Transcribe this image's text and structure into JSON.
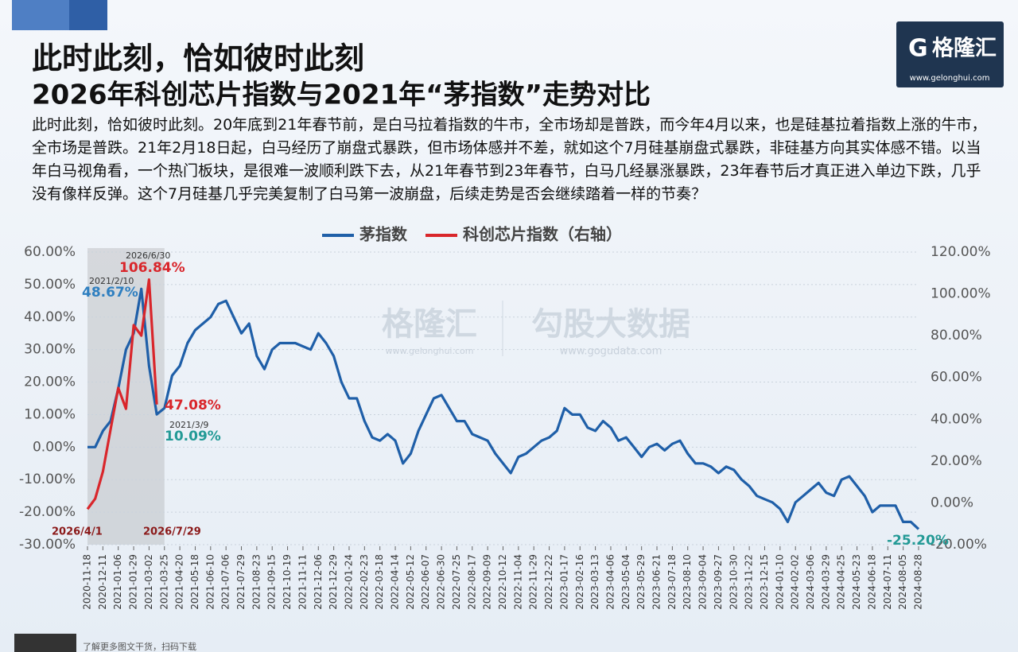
{
  "chart_data": {
    "type": "line",
    "title": "此时此刻，恰如彼时此刻",
    "subtitle": "2026年科创芯片指数与2021年“茅指数”走势对比",
    "description": "此时此刻，恰如彼时此刻。20年底到21年春节前，是白马拉着指数的牛市，全市场却是普跌，而今年4月以来，也是硅基拉着指数上涨的牛市，全市场是普跌。21年2月18日起，白马经历了崩盘式暴跌，但市场体感并不差，就如这个7月硅基崩盘式暴跌，非硅基方向其实体感不错。以当年白马视角看，一个热门板块，是很难一波顺利跌下去，从21年春节到23年春节，白马几经暴涨暴跌，23年春节后才真正进入单边下跌，几乎没有像样反弹。这个7月硅基几乎完美复制了白马第一波崩盘，后续走势是否会继续踏着一样的节奏？",
    "logo": {
      "name": "格隆汇",
      "url": "www.gelonghui.com"
    },
    "watermark": [
      "格隆汇",
      "www.gelonghui.com",
      "勾股大数据",
      "www.gogudata.com"
    ],
    "footer": "了解更多图文干货，扫码下载",
    "categories": [
      "2020-11-18",
      null,
      "2020-12-11",
      null,
      "2021-01-06",
      null,
      "2021-01-29",
      null,
      "2021-03-02",
      null,
      "2021-03-25",
      null,
      "2021-04-20",
      null,
      "2021-05-18",
      null,
      "2021-06-10",
      null,
      "2021-07-06",
      null,
      "2021-07-29",
      null,
      "2021-08-23",
      null,
      "2021-09-15",
      null,
      "2021-10-19",
      null,
      "2021-11-11",
      null,
      "2021-12-06",
      null,
      "2021-12-29",
      null,
      "2022-01-24",
      null,
      "2022-02-23",
      null,
      "2022-03-18",
      null,
      "2022-04-14",
      null,
      "2022-05-12",
      null,
      "2022-06-07",
      null,
      "2022-06-30",
      null,
      "2022-07-25",
      null,
      "2022-08-17",
      null,
      "2022-09-09",
      null,
      "2022-10-12",
      null,
      "2022-11-04",
      null,
      "2022-11-29",
      null,
      "2022-12-22",
      null,
      "2023-01-17",
      null,
      "2023-02-16",
      null,
      "2023-03-13",
      null,
      "2023-04-06",
      null,
      "2023-05-04",
      null,
      "2023-05-29",
      null,
      "2023-06-21",
      null,
      "2023-07-18",
      null,
      "2023-08-10",
      null,
      "2023-09-04",
      null,
      "2023-09-27",
      null,
      "2023-10-30",
      null,
      "2023-11-22",
      null,
      "2023-12-15",
      null,
      "2024-01-10",
      null,
      "2024-02-02",
      null,
      "2024-03-06",
      null,
      "2024-03-29",
      null,
      "2024-04-25",
      null,
      "2024-05-23",
      null,
      "2024-06-18",
      null,
      "2024-07-11",
      null,
      "2024-08-05",
      null,
      "2024-08-28"
    ],
    "series": [
      {
        "name": "茅指数",
        "color": "#1f5fa8",
        "axis": "y",
        "values": [
          0,
          0,
          5,
          8,
          18,
          30,
          35,
          48.67,
          25,
          10.09,
          12,
          22,
          25,
          32,
          36,
          38,
          40,
          44,
          45,
          40,
          35,
          38,
          28,
          24,
          30,
          32,
          32,
          32,
          31,
          30,
          35,
          32,
          28,
          20,
          15,
          15,
          8,
          3,
          2,
          4,
          2,
          -5,
          -2,
          5,
          10,
          15,
          16,
          12,
          8,
          8,
          4,
          3,
          2,
          -2,
          -5,
          -8,
          -3,
          -2,
          0,
          2,
          3,
          5,
          12,
          10,
          10,
          6,
          5,
          8,
          6,
          2,
          3,
          0,
          -3,
          0,
          1,
          -1,
          1,
          2,
          -2,
          -5,
          -5,
          -6,
          -8,
          -6,
          -7,
          -10,
          -12,
          -15,
          -16,
          -17,
          -19,
          -23,
          -17,
          -15,
          -13,
          -11,
          -14,
          -15,
          -10,
          -9,
          -12,
          -15,
          -20,
          -18,
          -18,
          -18,
          -23,
          -23,
          -25.2
        ],
        "value_labels": {
          "7": "48.67%",
          "9": "10.09%",
          "108": "-25.20%"
        }
      },
      {
        "name": "科创芯片指数（右轴）",
        "color": "#d9262b",
        "axis": "y2",
        "values": [
          -3,
          2,
          15,
          35,
          55,
          45,
          85,
          80,
          106.84,
          47.08,
          null,
          null,
          null,
          null,
          null,
          null,
          null,
          null,
          null,
          null,
          null,
          null,
          null,
          null,
          null,
          null,
          null,
          null,
          null,
          null,
          null,
          null,
          null,
          null,
          null,
          null,
          null,
          null,
          null,
          null,
          null,
          null,
          null,
          null,
          null,
          null,
          null,
          null,
          null,
          null,
          null,
          null,
          null,
          null,
          null,
          null,
          null,
          null,
          null,
          null,
          null,
          null,
          null,
          null,
          null,
          null,
          null,
          null,
          null,
          null,
          null,
          null,
          null,
          null,
          null,
          null,
          null,
          null,
          null,
          null,
          null,
          null,
          null,
          null,
          null,
          null,
          null,
          null,
          null,
          null,
          null,
          null,
          null,
          null,
          null,
          null,
          null,
          null,
          null,
          null,
          null,
          null,
          null,
          null,
          null,
          null,
          null,
          null,
          null
        ],
        "value_labels": {
          "8": "106.84%",
          "9": "47.08%"
        }
      }
    ],
    "annotations": [
      "2026/6/30",
      "2021/2/10",
      "2021/3/9",
      "2026/4/1",
      "2026/7/29"
    ],
    "ylim": [
      -30,
      60
    ],
    "yticks": [
      {
        "value": 60,
        "label": "60.00%"
      },
      {
        "value": 50,
        "label": "50.00%"
      },
      {
        "value": 40,
        "label": "40.00%"
      },
      {
        "value": 30,
        "label": "30.00%"
      },
      {
        "value": 20,
        "label": "20.00%"
      },
      {
        "value": 10,
        "label": "10.00%"
      },
      {
        "value": 0,
        "label": "0.00%"
      },
      {
        "value": -10,
        "label": "-10.00%"
      },
      {
        "value": -20,
        "label": "-20.00%"
      },
      {
        "value": -30,
        "label": "-30.00%"
      }
    ],
    "y2lim": [
      -20,
      120
    ],
    "y2ticks": [
      {
        "value": 120,
        "label": "120.00%"
      },
      {
        "value": 100,
        "label": "100.00%"
      },
      {
        "value": 80,
        "label": "80.00%"
      },
      {
        "value": 60,
        "label": "60.00%"
      },
      {
        "value": 40,
        "label": "40.00%"
      },
      {
        "value": 20,
        "label": "20.00%"
      },
      {
        "value": 0,
        "label": "0.00%"
      },
      {
        "value": -20,
        "label": "-20.00%"
      }
    ],
    "grid": true,
    "legend": "top"
  }
}
